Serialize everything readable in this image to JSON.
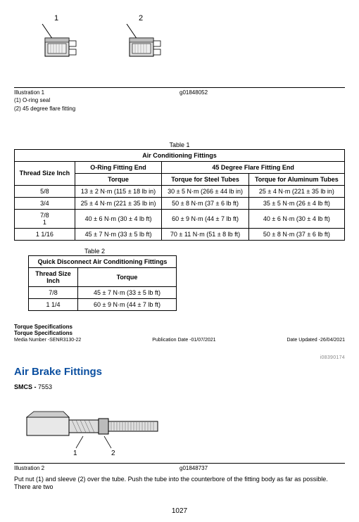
{
  "illustration1": {
    "label1": "1",
    "label2": "2",
    "caption_left": "Illustration 1",
    "caption_right": "g01848052",
    "sub1": "(1) O-ring seal",
    "sub2": "(2) 45 degree flare fitting"
  },
  "table1": {
    "title": "Table 1",
    "header_span": "Air Conditioning Fittings",
    "col_thread": "Thread Size Inch",
    "col_oring": "O-Ring Fitting End",
    "col_45": "45 Degree Flare Fitting End",
    "col_torque": "Torque",
    "col_steel": "Torque for Steel Tubes",
    "col_alum": "Torque for Aluminum Tubes",
    "rows": [
      {
        "size": "5/8",
        "oring": "13 ± 2 N·m (115 ± 18 lb in)",
        "steel": "30 ± 5 N·m (266 ± 44 lb in)",
        "alum": "25 ± 4 N·m (221 ± 35 lb in)"
      },
      {
        "size": "3/4",
        "oring": "25 ± 4 N·m (221 ± 35 lb in)",
        "steel": "50 ± 8 N·m (37 ± 6 lb ft)",
        "alum": "35 ± 5 N·m (26 ± 4 lb ft)"
      },
      {
        "size": "7/8\n1",
        "oring": "40 ± 6 N·m (30 ± 4 lb ft)",
        "steel": "60 ± 9 N·m (44 ± 7 lb ft)",
        "alum": "40 ± 6 N·m (30 ± 4 lb ft)"
      },
      {
        "size": "1 1/16",
        "oring": "45 ± 7 N·m (33 ± 5 lb ft)",
        "steel": "70 ± 11 N·m (51 ± 8 lb ft)",
        "alum": "50 ± 8 N·m (37 ± 6 lb ft)"
      }
    ]
  },
  "table2": {
    "title": "Table 2",
    "header_span": "Quick Disconnect Air Conditioning Fittings",
    "col_thread": "Thread Size Inch",
    "col_torque": "Torque",
    "rows": [
      {
        "size": "7/8",
        "torque": "45 ± 7 N·m (33 ± 5 lb ft)"
      },
      {
        "size": "1 1/4",
        "torque": "60 ± 9 N·m (44 ± 7 lb ft)"
      }
    ]
  },
  "meta": {
    "line1": "Torque Specifications",
    "line2": "Torque Specifications",
    "media": "Media Number -SENR3130-22",
    "pub": "Publication Date -01/07/2021",
    "upd": "Date Updated -26/04/2021",
    "docid": "i08390174"
  },
  "section2": {
    "title": "Air Brake Fittings",
    "smcs_label": "SMCS - ",
    "smcs_code": "7553"
  },
  "illustration2": {
    "caption_left": "Illustration 2",
    "caption_right": "g01848737",
    "label1": "1",
    "label2": "2"
  },
  "bodytext": "Put nut (1) and sleeve (2) over the tube. Push the tube into the counterbore of the fitting body as far as possible. There are two",
  "page": "1027",
  "colors": {
    "heading": "#0b4fa0",
    "border": "#000000"
  }
}
